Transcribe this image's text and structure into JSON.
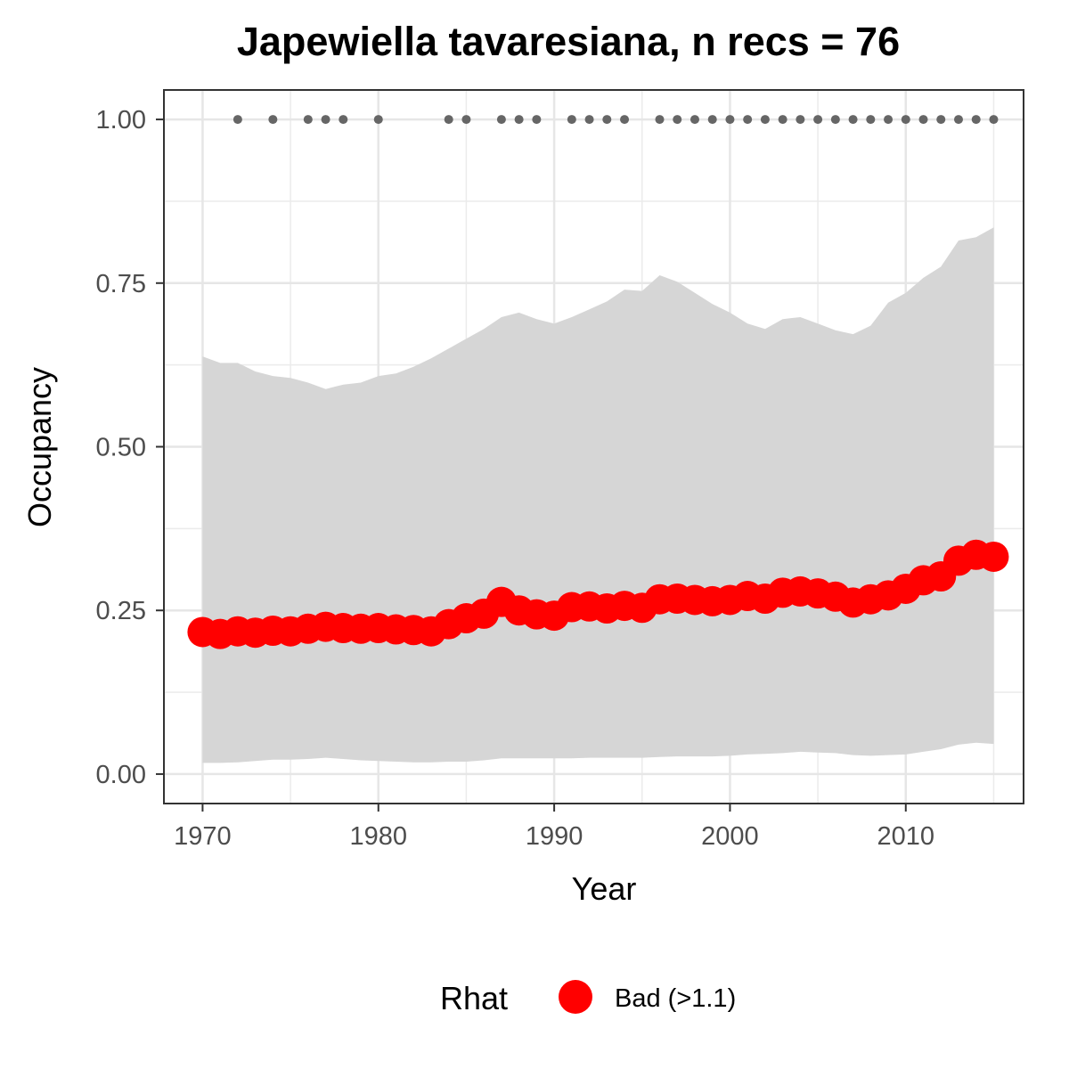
{
  "chart_data": {
    "type": "line",
    "title": "Japewiella tavaresiana, n recs = 76",
    "xlabel": "Year",
    "ylabel": "Occupancy",
    "xlim": [
      1967.8,
      2016.7
    ],
    "ylim": [
      -0.045,
      1.045
    ],
    "x_ticks": [
      1970,
      1980,
      1990,
      2000,
      2010
    ],
    "x_tick_labels": [
      "1970",
      "1980",
      "1990",
      "2000",
      "2010"
    ],
    "y_ticks": [
      0,
      0.25,
      0.5,
      0.75,
      1.0
    ],
    "y_tick_labels": [
      "0.00",
      "0.25",
      "0.50",
      "0.75",
      "1.00"
    ],
    "grid": true,
    "legend": {
      "title": "Rhat",
      "position": "bottom",
      "entries": [
        {
          "label": "Bad (>1.1)",
          "color": "#ff0000"
        }
      ]
    },
    "series": [
      {
        "name": "Bad (>1.1)",
        "color": "#ff0000",
        "x": [
          1970,
          1971,
          1972,
          1973,
          1974,
          1975,
          1976,
          1977,
          1978,
          1979,
          1980,
          1981,
          1982,
          1983,
          1984,
          1985,
          1986,
          1987,
          1988,
          1989,
          1990,
          1991,
          1992,
          1993,
          1994,
          1995,
          1996,
          1997,
          1998,
          1999,
          2000,
          2001,
          2002,
          2003,
          2004,
          2005,
          2006,
          2007,
          2008,
          2009,
          2010,
          2011,
          2012,
          2013,
          2014,
          2015
        ],
        "values": [
          0.217,
          0.214,
          0.218,
          0.216,
          0.219,
          0.218,
          0.222,
          0.225,
          0.223,
          0.222,
          0.223,
          0.221,
          0.22,
          0.218,
          0.229,
          0.238,
          0.245,
          0.263,
          0.25,
          0.244,
          0.242,
          0.255,
          0.256,
          0.253,
          0.257,
          0.254,
          0.267,
          0.268,
          0.266,
          0.264,
          0.266,
          0.272,
          0.268,
          0.277,
          0.279,
          0.276,
          0.271,
          0.262,
          0.267,
          0.273,
          0.283,
          0.296,
          0.302,
          0.326,
          0.335,
          0.332
        ]
      }
    ],
    "credible_interval": {
      "color": "#d6d6d6",
      "x": [
        1970,
        1971,
        1972,
        1973,
        1974,
        1975,
        1976,
        1977,
        1978,
        1979,
        1980,
        1981,
        1982,
        1983,
        1984,
        1985,
        1986,
        1987,
        1988,
        1989,
        1990,
        1991,
        1992,
        1993,
        1994,
        1995,
        1996,
        1997,
        1998,
        1999,
        2000,
        2001,
        2002,
        2003,
        2004,
        2005,
        2006,
        2007,
        2008,
        2009,
        2010,
        2011,
        2012,
        2013,
        2014,
        2015
      ],
      "lower": [
        0.017,
        0.017,
        0.018,
        0.02,
        0.022,
        0.022,
        0.023,
        0.025,
        0.023,
        0.021,
        0.02,
        0.019,
        0.018,
        0.018,
        0.019,
        0.019,
        0.021,
        0.024,
        0.024,
        0.024,
        0.024,
        0.024,
        0.025,
        0.025,
        0.025,
        0.025,
        0.026,
        0.027,
        0.027,
        0.027,
        0.028,
        0.03,
        0.031,
        0.032,
        0.034,
        0.033,
        0.032,
        0.029,
        0.028,
        0.029,
        0.03,
        0.034,
        0.038,
        0.045,
        0.048,
        0.046
      ],
      "upper": [
        0.638,
        0.628,
        0.628,
        0.615,
        0.608,
        0.605,
        0.598,
        0.588,
        0.595,
        0.598,
        0.608,
        0.612,
        0.622,
        0.635,
        0.65,
        0.665,
        0.68,
        0.698,
        0.705,
        0.695,
        0.688,
        0.698,
        0.71,
        0.722,
        0.74,
        0.738,
        0.762,
        0.752,
        0.735,
        0.718,
        0.705,
        0.688,
        0.68,
        0.695,
        0.698,
        0.688,
        0.678,
        0.672,
        0.685,
        0.72,
        0.735,
        0.758,
        0.775,
        0.815,
        0.82,
        0.835
      ]
    },
    "record_years": {
      "color": "#666666",
      "y": 1.0,
      "x": [
        1972,
        1974,
        1976,
        1977,
        1978,
        1980,
        1984,
        1985,
        1987,
        1988,
        1989,
        1991,
        1992,
        1993,
        1994,
        1996,
        1997,
        1998,
        1999,
        2000,
        2001,
        2002,
        2003,
        2004,
        2005,
        2006,
        2007,
        2008,
        2009,
        2010,
        2011,
        2012,
        2013,
        2014,
        2015
      ]
    }
  }
}
